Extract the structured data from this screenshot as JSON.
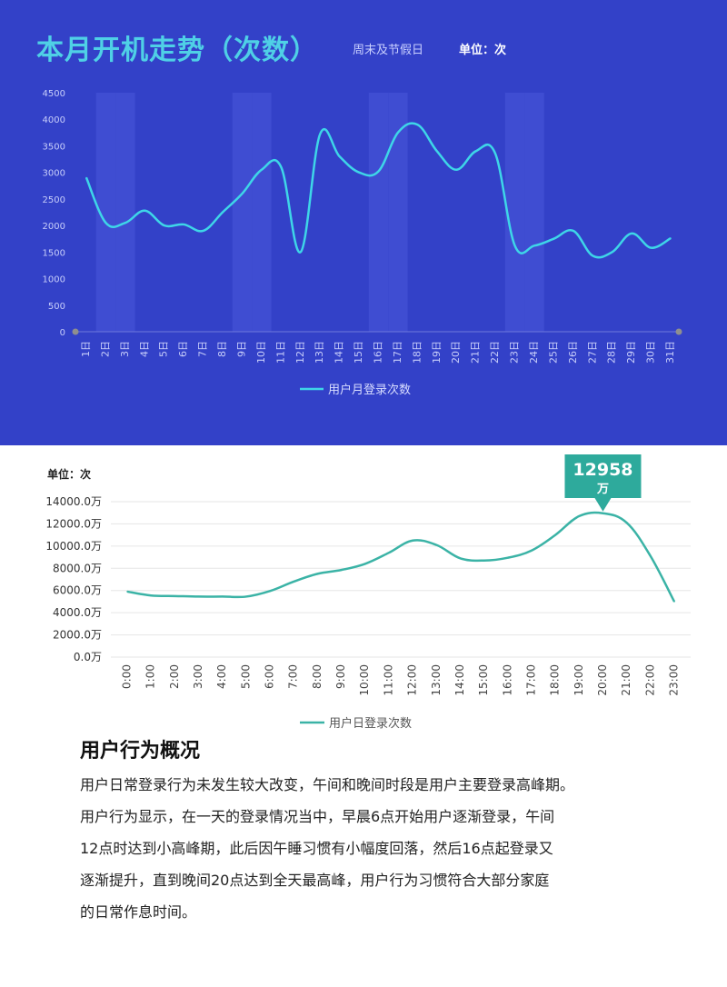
{
  "top": {
    "title": "本月开机走势（次数）",
    "note": "周末及节假日",
    "unit": "单位：次"
  },
  "bottom": {
    "unit": "单位：次",
    "peak_value": "12958",
    "peak_unit": "万"
  },
  "colors": {
    "top_bg": "#3341c8",
    "top_line": "#3ed6e8",
    "band": "#3f4dd2",
    "bottom_line": "#3bb3a6",
    "callout": "#2eaa9c"
  },
  "chart_data": [
    {
      "type": "line",
      "title": "本月开机走势（次数）",
      "categories": [
        "1日",
        "2日",
        "3日",
        "4日",
        "5日",
        "6日",
        "7日",
        "8日",
        "9日",
        "10日",
        "11日",
        "12日",
        "13日",
        "14日",
        "15日",
        "16日",
        "17日",
        "18日",
        "19日",
        "20日",
        "21日",
        "22日",
        "23日",
        "24日",
        "25日",
        "26日",
        "27日",
        "28日",
        "29日",
        "30日",
        "31日"
      ],
      "series": [
        {
          "name": "用户月登录次数",
          "values": [
            2900,
            2050,
            2050,
            2280,
            2000,
            2020,
            1900,
            2250,
            2600,
            3050,
            3100,
            1500,
            3720,
            3300,
            3000,
            3020,
            3750,
            3900,
            3400,
            3050,
            3400,
            3350,
            1620,
            1620,
            1750,
            1900,
            1430,
            1500,
            1850,
            1580,
            1760
          ]
        }
      ],
      "yticks": [
        0,
        500,
        1000,
        1500,
        2000,
        2500,
        3000,
        3500,
        4000,
        4500
      ],
      "ylim": [
        0,
        4500
      ],
      "grid": false,
      "legend": "bottom",
      "highlight_note": "周末及节假日",
      "highlight_bands": [
        "2日",
        "3日",
        "9日",
        "10日",
        "16日",
        "17日",
        "23日",
        "24日"
      ]
    },
    {
      "type": "line",
      "categories": [
        "0:00",
        "1:00",
        "2:00",
        "3:00",
        "4:00",
        "5:00",
        "6:00",
        "7:00",
        "8:00",
        "9:00",
        "10:00",
        "11:00",
        "12:00",
        "13:00",
        "14:00",
        "15:00",
        "16:00",
        "17:00",
        "18:00",
        "19:00",
        "20:00",
        "21:00",
        "22:00",
        "23:00"
      ],
      "series": [
        {
          "name": "用户日登录次数",
          "values": [
            5900,
            5550,
            5500,
            5450,
            5450,
            5450,
            5950,
            6800,
            7500,
            7850,
            8400,
            9400,
            10500,
            10100,
            8900,
            8700,
            8950,
            9600,
            11000,
            12700,
            12958,
            12100,
            9100,
            5000
          ]
        }
      ],
      "yticks": [
        "0.0万",
        "2000.0万",
        "4000.0万",
        "6000.0万",
        "8000.0万",
        "10000.0万",
        "12000.0万",
        "14000.0万"
      ],
      "ylim": [
        0,
        14000
      ],
      "grid": true,
      "legend": "bottom",
      "annotation": {
        "x": "20:00",
        "value": "12958",
        "unit": "万"
      }
    }
  ],
  "section": {
    "heading": "用户行为概况",
    "lines": [
      "用户日常登录行为未发生较大改变，午间和晚间时段是用户主要登录高峰期。",
      "用户行为显示，在一天的登录情况当中，早晨6点开始用户逐渐登录，午间",
      "12点时达到小高峰期，此后因午睡习惯有小幅度回落，然后16点起登录又",
      "逐渐提升，直到晚间20点达到全天最高峰，用户行为习惯符合大部分家庭",
      "的日常作息时间。"
    ]
  }
}
